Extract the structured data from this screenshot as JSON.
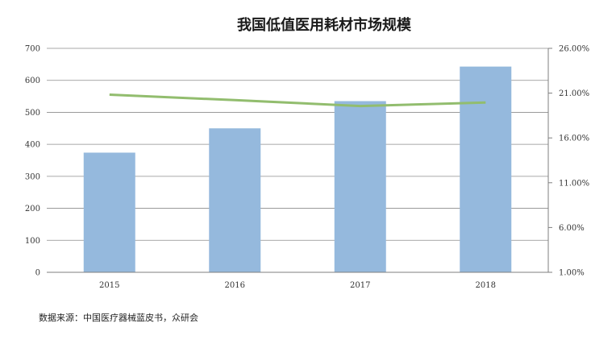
{
  "chart_data": {
    "type": "bar",
    "title": "我国低值医用耗材市场规模",
    "categories": [
      "2015",
      "2016",
      "2017",
      "2018"
    ],
    "series": [
      {
        "type": "bar",
        "axis": "left",
        "color": "#95b9dd",
        "values": [
          374,
          450,
          535,
          643
        ]
      },
      {
        "type": "line",
        "axis": "right",
        "color": "#92bd6e",
        "values": [
          0.2083,
          0.2022,
          0.1956,
          0.1995
        ]
      }
    ],
    "y_left": {
      "min": 0,
      "max": 700,
      "step": 100,
      "ticks": [
        "0",
        "100",
        "200",
        "300",
        "400",
        "500",
        "600",
        "700"
      ]
    },
    "y_right": {
      "min": 0.01,
      "max": 0.26,
      "ticks": [
        "1.00%",
        "6.00%",
        "11.00%",
        "16.00%",
        "21.00%",
        "26.00%"
      ]
    },
    "grid": true,
    "legend": "none"
  },
  "source": "数据来源：中国医疗器械蓝皮书，众研会"
}
